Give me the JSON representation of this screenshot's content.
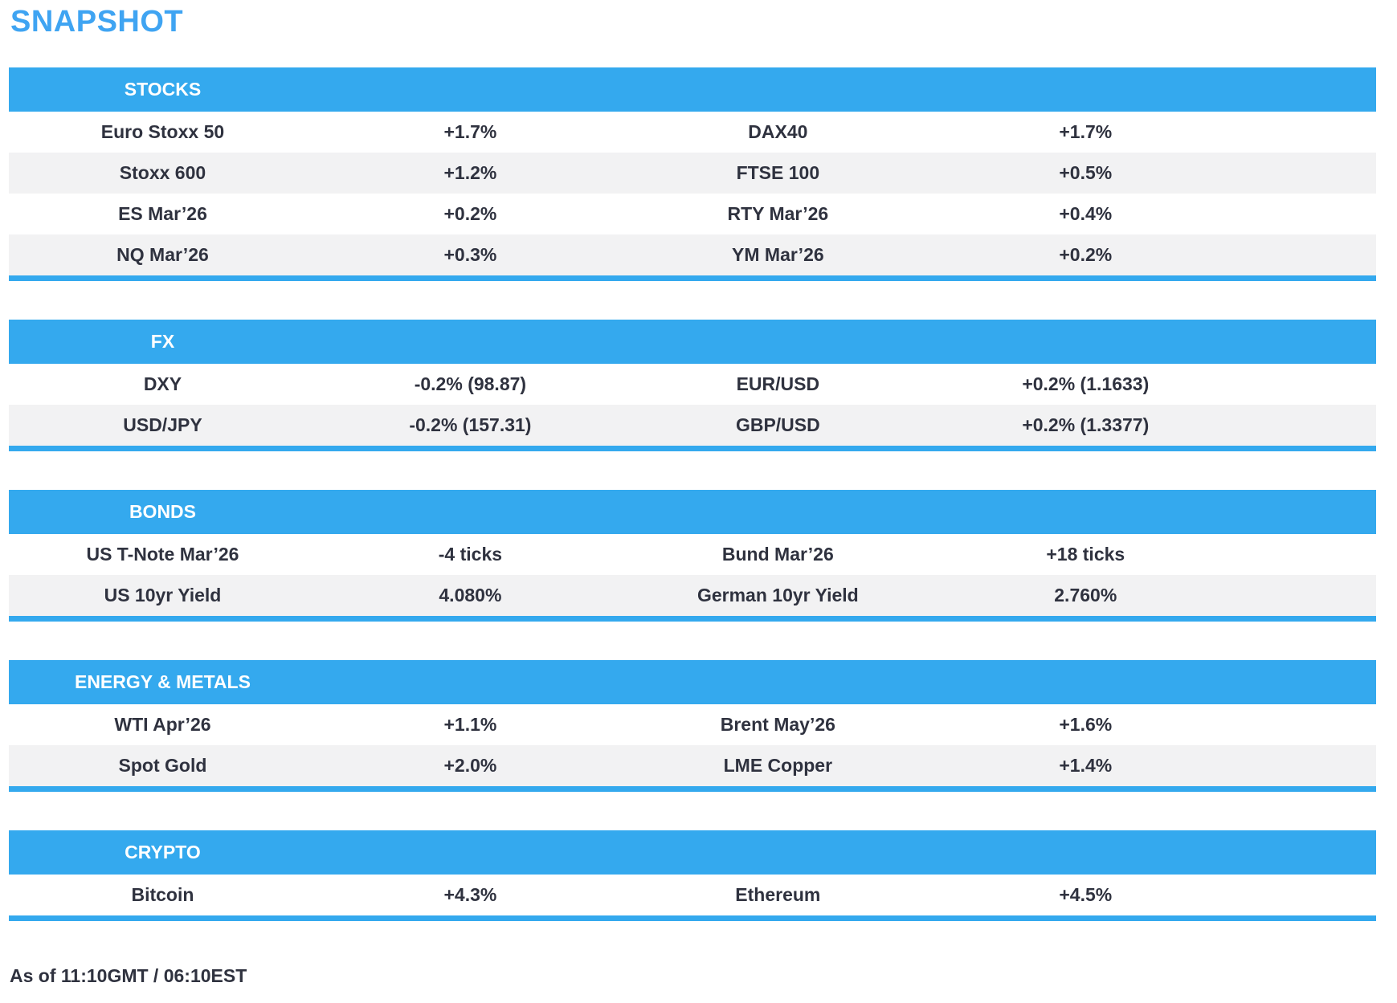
{
  "page": {
    "title": "SNAPSHOT",
    "footer": "As of 11:10GMT / 06:10EST"
  },
  "colors": {
    "accent_blue": "#34A9EE",
    "title_blue": "#3FA4F2",
    "stripe_gray": "#F2F2F3",
    "text_dark": "#2F323F",
    "header_text": "#FFFFFF"
  },
  "sections": [
    {
      "id": "stocks",
      "header": "STOCKS",
      "rows": [
        [
          "Euro Stoxx 50",
          "+1.7%",
          "DAX40",
          "+1.7%"
        ],
        [
          "Stoxx 600",
          "+1.2%",
          "FTSE 100",
          "+0.5%"
        ],
        [
          "ES Mar’26",
          "+0.2%",
          "RTY Mar’26",
          "+0.4%"
        ],
        [
          "NQ Mar’26",
          "+0.3%",
          "YM Mar’26",
          "+0.2%"
        ]
      ]
    },
    {
      "id": "fx",
      "header": "FX",
      "rows": [
        [
          "DXY",
          "-0.2% (98.87)",
          "EUR/USD",
          "+0.2% (1.1633)"
        ],
        [
          "USD/JPY",
          "-0.2% (157.31)",
          "GBP/USD",
          "+0.2% (1.3377)"
        ]
      ]
    },
    {
      "id": "bonds",
      "header": "BONDS",
      "rows": [
        [
          "US T-Note Mar’26",
          "-4 ticks",
          "Bund Mar’26",
          "+18 ticks"
        ],
        [
          "US 10yr Yield",
          "4.080%",
          "German 10yr Yield",
          "2.760%"
        ]
      ]
    },
    {
      "id": "energy-metals",
      "header": "ENERGY & METALS",
      "rows": [
        [
          "WTI Apr’26",
          "+1.1%",
          "Brent May’26",
          "+1.6%"
        ],
        [
          "Spot Gold",
          "+2.0%",
          "LME Copper",
          "+1.4%"
        ]
      ]
    },
    {
      "id": "crypto",
      "header": "CRYPTO",
      "rows": [
        [
          "Bitcoin",
          "+4.3%",
          "Ethereum",
          "+4.5%"
        ]
      ]
    }
  ]
}
